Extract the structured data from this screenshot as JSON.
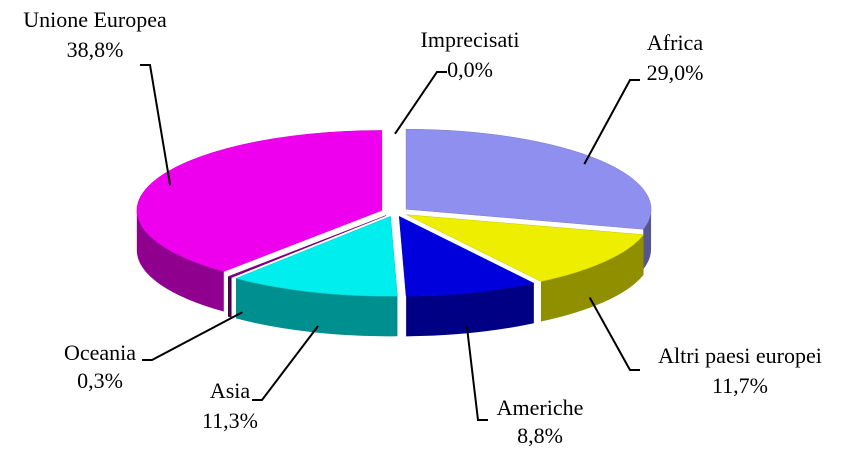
{
  "chart_data": {
    "type": "pie3d",
    "categories": [
      "Imprecisati",
      "Africa",
      "Altri paesi europei",
      "Americhe",
      "Asia",
      "Oceania",
      "Unione Europea"
    ],
    "values": [
      0.0,
      29.0,
      11.7,
      8.8,
      11.3,
      0.3,
      38.8
    ],
    "value_labels": [
      "0,0%",
      "29,0%",
      "11,7%",
      "8,8%",
      "11,3%",
      "0,3%",
      "38,8%"
    ],
    "colors": [
      "#ffffff",
      "#8f8fef",
      "#eeee00",
      "#0000dd",
      "#00eeee",
      "#800080",
      "#ee00ee"
    ]
  }
}
